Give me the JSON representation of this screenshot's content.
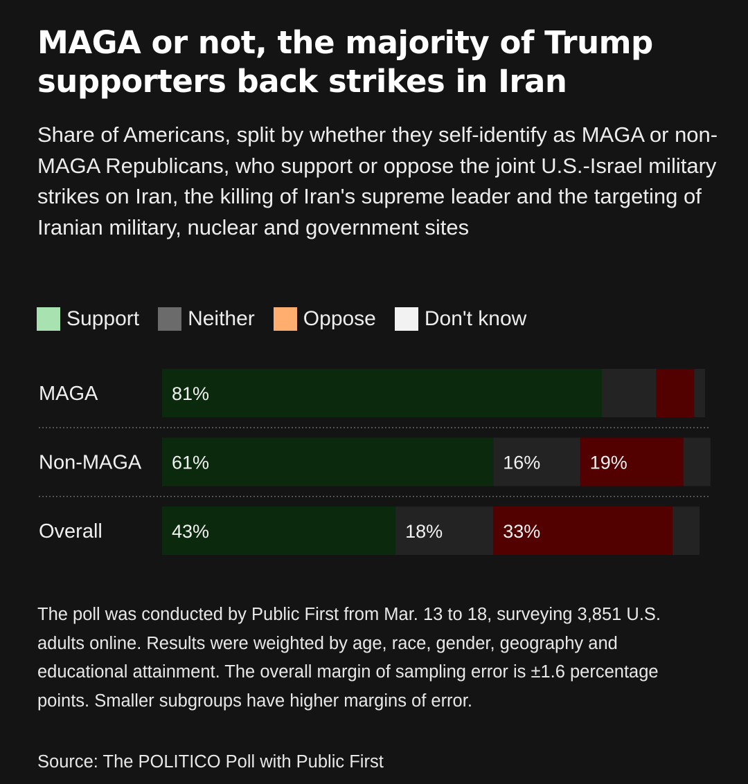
{
  "header": {
    "title": "MAGA or not, the majority of Trump supporters back strikes in Iran",
    "subtitle": "Share of Americans, split by whether they self-identify as MAGA or non-MAGA Republicans, who support or oppose the joint U.S.-Israel military strikes on Iran, the killing of Iran's supreme leader and the targeting of Iranian military, nuclear and government sites"
  },
  "legend": [
    {
      "label": "Support",
      "color": "#a8e2b0"
    },
    {
      "label": "Neither",
      "color": "#6b6b6b"
    },
    {
      "label": "Oppose",
      "color": "#ffae70"
    },
    {
      "label": "Don't know",
      "color": "#f2f2f2"
    }
  ],
  "chart_data": {
    "type": "bar",
    "orientation": "horizontal",
    "stacked": true,
    "unit": "%",
    "categories": [
      "MAGA",
      "Non-MAGA",
      "Overall"
    ],
    "series": [
      {
        "name": "Support",
        "values": [
          81,
          61,
          43
        ],
        "labels": [
          "81%",
          "61%",
          "43%"
        ],
        "color": "#0b2a0d"
      },
      {
        "name": "Neither",
        "values": [
          10,
          16,
          18
        ],
        "labels": [
          "",
          "16%",
          "18%"
        ],
        "color": "#232323"
      },
      {
        "name": "Oppose",
        "values": [
          7,
          19,
          33
        ],
        "labels": [
          "",
          "19%",
          "33%"
        ],
        "color": "#520000"
      },
      {
        "name": "Don't know",
        "values": [
          2,
          5,
          5
        ],
        "labels": [
          "",
          "",
          ""
        ],
        "color": "#232323"
      }
    ],
    "xlim": [
      0,
      100
    ],
    "legend_position": "top-left"
  },
  "footer": {
    "note": "The poll was conducted by Public First from Mar. 13 to 18, surveying 3,851 U.S. adults online. Results were weighted by age, race, gender, geography and educational attainment. The overall margin of sampling error is ±1.6 percentage points. Smaller subgroups have higher margins of error.",
    "source": "Source: The POLITICO Poll with Public First"
  }
}
